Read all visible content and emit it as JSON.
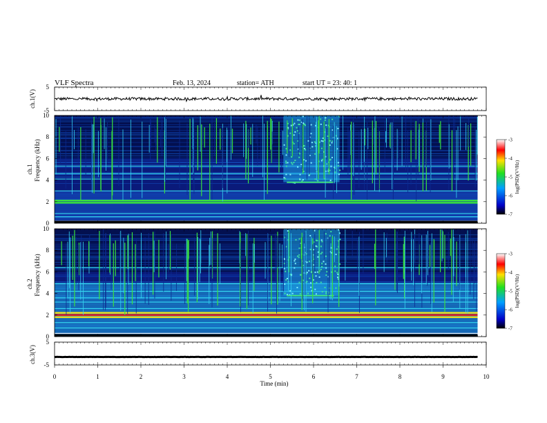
{
  "header": {
    "title": "VLF  Spectra",
    "date": "Feb. 13, 2024",
    "station": "station= ATH",
    "start_ut": "start  UT  =    23: 40: 1"
  },
  "colors": {
    "spec_bg": "#0a1a7a",
    "accent_cyan": "#35d6f0",
    "accent_green": "#38e040",
    "accent_yellow": "#e8e020",
    "accent_red": "#e02020",
    "colormap": [
      "#000000",
      "#0000c8",
      "#00a0ff",
      "#20e020",
      "#ffe000",
      "#ff0000",
      "#ffffff"
    ]
  },
  "chart_data": {
    "type": "heatmap",
    "xlabel": "Time  (min)",
    "x_ticks": [
      "0",
      "1",
      "2",
      "3",
      "4",
      "5",
      "6",
      "7",
      "8",
      "9",
      "10"
    ],
    "xlim": [
      0,
      10
    ],
    "panels": [
      {
        "name": "ch.1(V)",
        "type": "line",
        "ylabel": "ch.1(V)",
        "ylim": [
          -5,
          5
        ],
        "y_ticks": [
          "5",
          "-5"
        ],
        "baseline": 0,
        "amplitude": 0.6,
        "data_end_min": 9.8
      },
      {
        "name": "ch.1 spectrogram",
        "type": "heatmap",
        "ylabel": "Frequency  (kHz)",
        "channel_label": "ch.1",
        "ylim": [
          0,
          10
        ],
        "y_ticks": [
          "0",
          "2",
          "4",
          "6",
          "8",
          "10"
        ],
        "colorbar": {
          "label": "log(PSD)(V²/Hz)",
          "ticks": [
            "-3",
            "-4",
            "-5",
            "-6",
            "-7"
          ],
          "range": [
            -7,
            -3
          ]
        },
        "bands_khz": [
          0.2,
          0.6,
          0.9,
          1.9,
          2.1,
          3.0,
          4.1,
          4.6,
          5.3
        ],
        "burst": {
          "x_start_min": 5.3,
          "x_end_min": 6.6,
          "f_low_khz": 3.8,
          "f_high_khz": 10
        }
      },
      {
        "name": "ch.2 spectrogram",
        "type": "heatmap",
        "ylabel": "Frequency  (kHz)",
        "channel_label": "ch.2",
        "ylim": [
          0,
          10
        ],
        "y_ticks": [
          "0",
          "2",
          "4",
          "6",
          "8",
          "10"
        ],
        "colorbar": {
          "label": "log(PSD)(V²/Hz)",
          "ticks": [
            "-3",
            "-4",
            "-5",
            "-6",
            "-7"
          ],
          "range": [
            -7,
            -3
          ]
        },
        "bands_khz": [
          0.3,
          0.8,
          1.3,
          1.8,
          2.0,
          2.2,
          2.6,
          3.2,
          3.6,
          4.2,
          4.9,
          6.4
        ],
        "burst": {
          "x_start_min": 5.3,
          "x_end_min": 6.6,
          "f_low_khz": 3.8,
          "f_high_khz": 10
        }
      },
      {
        "name": "ch.3(V)",
        "type": "line",
        "ylabel": "ch.3(V)",
        "ylim": [
          -5,
          5
        ],
        "y_ticks": [
          "5",
          "-5"
        ],
        "baseline": -1.5,
        "amplitude": 0.05,
        "data_end_min": 9.8
      }
    ]
  }
}
